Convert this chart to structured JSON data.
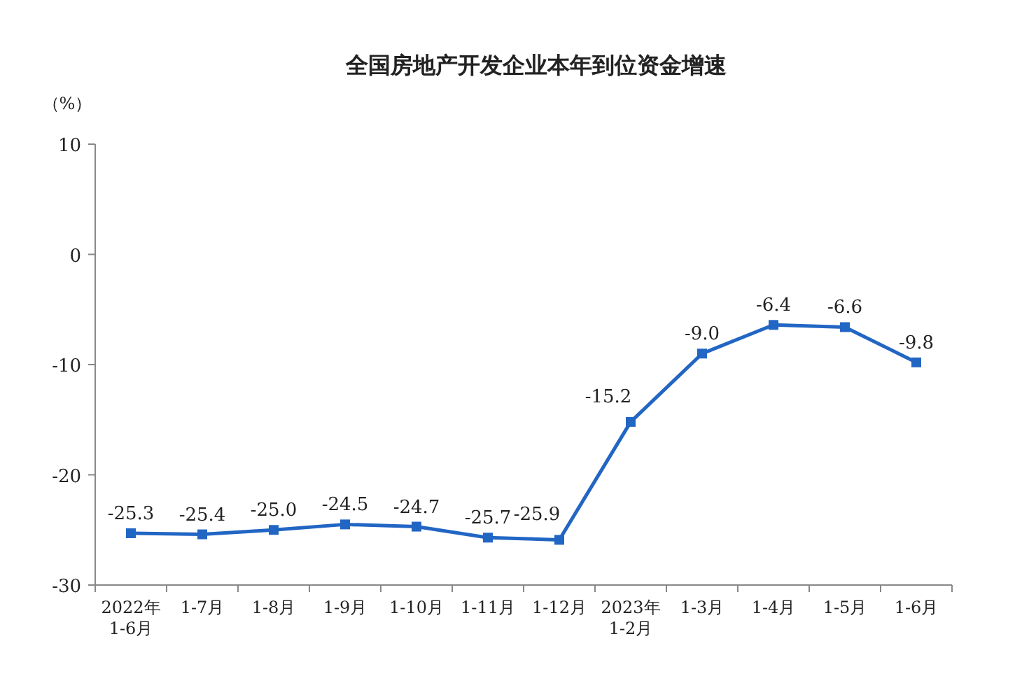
{
  "chart_data": {
    "type": "line",
    "title": "全国房地产开发企业本年到位资金增速",
    "ylabel": "（%）",
    "categories": [
      "2022年\n1-6月",
      "1-7月",
      "1-8月",
      "1-9月",
      "1-10月",
      "1-11月",
      "1-12月",
      "2023年\n1-2月",
      "1-3月",
      "1-4月",
      "1-5月",
      "1-6月"
    ],
    "values": [
      -25.3,
      -25.4,
      -25.0,
      -24.5,
      -24.7,
      -25.7,
      -25.9,
      -15.2,
      -9.0,
      -6.4,
      -6.6,
      -9.8
    ],
    "value_labels": [
      "-25.3",
      "-25.4",
      "-25.0",
      "-24.5",
      "-24.7",
      "-25.7",
      "-25.9",
      "-15.2",
      "-9.0",
      "-6.4",
      "-6.6",
      "-9.8"
    ],
    "color": "#2266c4",
    "marker": "square",
    "line_style": "solid",
    "ylim": [
      -30,
      10
    ],
    "yticks": [
      -30,
      -20,
      -10,
      0,
      10
    ]
  }
}
